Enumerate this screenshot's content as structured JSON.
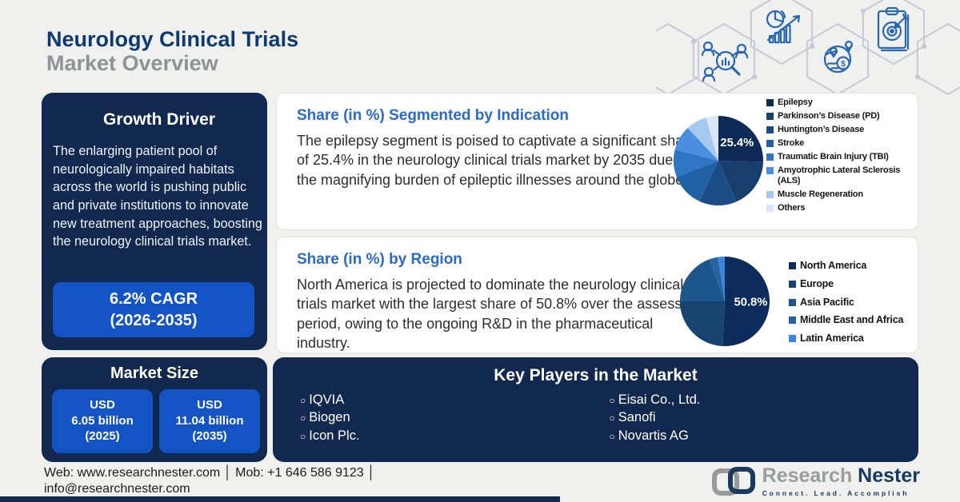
{
  "header": {
    "title": "Neurology Clinical Trials",
    "subtitle": "Market Overview"
  },
  "growth_driver": {
    "title": "Growth Driver",
    "body": "The enlarging patient pool of neurologically impaired habitats across the world is pushing public and private institutions to innovate new treatment approaches, boosting the neurology clinical trials market.",
    "cagr_line1": "6.2% CAGR",
    "cagr_line2": "(2026-2035)"
  },
  "indication_panel": {
    "title": "Share (in %) Segmented by Indication",
    "body": "The epilepsy segment is poised to captivate a significant share of 25.4% in the neurology clinical trials market by 2035 due to the magnifying burden of epileptic illnesses around the globe."
  },
  "region_panel": {
    "title": "Share (in %) by Region",
    "body": "North America is projected to dominate the neurology clinical trials market with the largest share of 50.8% over the assessed period, owing to the ongoing R&D in the pharmaceutical industry."
  },
  "market_size": {
    "title": "Market Size",
    "boxes": [
      {
        "l1": "USD",
        "l2": "6.05 billion",
        "l3": "(2025)"
      },
      {
        "l1": "USD",
        "l2": "11.04 billion",
        "l3": "(2035)"
      }
    ]
  },
  "key_players": {
    "title": "Key Players in the Market",
    "bullet": "○",
    "left": [
      "IQVIA",
      "Biogen",
      "Icon Plc."
    ],
    "right": [
      "Eisai Co., Ltd.",
      "Sanofi",
      "Novartis AG"
    ]
  },
  "footer": {
    "line1": "Web: www.researchnester.com │ Mob: +1 646 586 9123 │",
    "line2": "info@researchnester.com"
  },
  "logo": {
    "name1": "Research",
    "name2": "Nester",
    "tagline": "Connect. Lead. Accomplish"
  },
  "decorative_icons": [
    "audience-search-icon",
    "market-analytics-icon",
    "global-market-icon",
    "target-clipboard-icon"
  ],
  "colors": {
    "background": "#f0f0ee",
    "navy_card": "#12294f",
    "accent_blue": "#1353c4",
    "heading_navy": "#0e3a72",
    "heading_gray": "#8f9397",
    "panel_title_blue": "#2a6ac8",
    "hex_line": "#c8c9d7",
    "icon_blue": "#2767b4"
  },
  "chart_data": [
    {
      "type": "pie",
      "title": "Share (in %) Segmented by Indication",
      "label": "25.4%",
      "labeled_slice": "Epilepsy",
      "legend_position": "right",
      "slices": [
        {
          "name": "Epilepsy",
          "value": 25.4,
          "color": "#0d2a56"
        },
        {
          "name": "Parkinson’s Disease (PD)",
          "value": 18.0,
          "color": "#173e6d"
        },
        {
          "name": "Huntington’s Disease",
          "value": 13.6,
          "color": "#1b4c85"
        },
        {
          "name": "Stroke",
          "value": 12.0,
          "color": "#2061a3"
        },
        {
          "name": "Traumatic Brain Injury (TBI)",
          "value": 10.0,
          "color": "#2e75c3"
        },
        {
          "name": "Amyotrophic Lateral Sclerosis (ALS)",
          "value": 9.0,
          "color": "#4a8ee0"
        },
        {
          "name": "Muscle Regeneration",
          "value": 7.5,
          "color": "#a6c7ee"
        },
        {
          "name": "Others",
          "value": 4.5,
          "color": "#d9e6f7"
        }
      ]
    },
    {
      "type": "pie",
      "title": "Share (in %) by Region",
      "label": "50.8%",
      "labeled_slice": "North America",
      "legend_position": "right",
      "slices": [
        {
          "name": "North America",
          "value": 50.8,
          "color": "#0d2c5b"
        },
        {
          "name": "Europe",
          "value": 24.2,
          "color": "#16436f"
        },
        {
          "name": "Asia Pacific",
          "value": 19.5,
          "color": "#1d568d"
        },
        {
          "name": "Middle East and Africa",
          "value": 3.0,
          "color": "#25649f"
        },
        {
          "name": "Latin America",
          "value": 2.5,
          "color": "#3d85d8"
        }
      ]
    }
  ]
}
